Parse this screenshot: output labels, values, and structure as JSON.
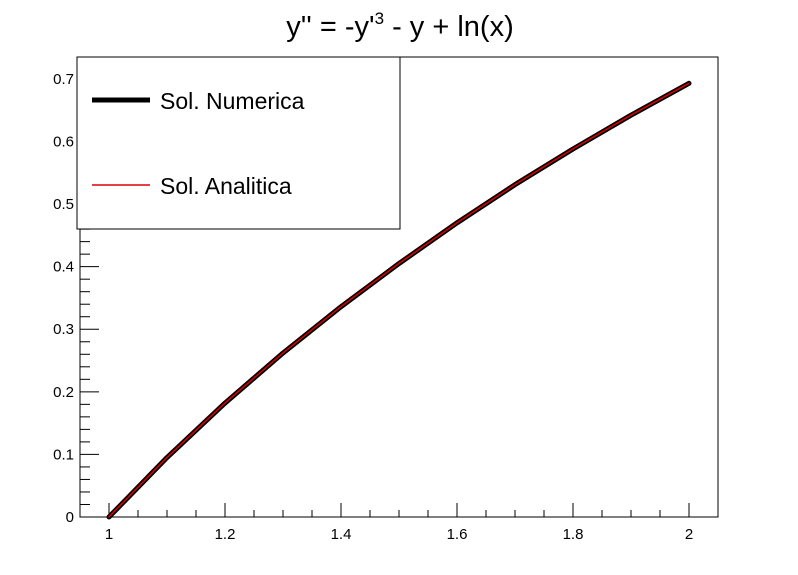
{
  "chart_data": {
    "type": "line",
    "title": {
      "prefix": "y'' = -y'",
      "superscript": "3",
      "suffix": " - y + ln(x)"
    },
    "xlabel": "",
    "ylabel": "",
    "xlim": [
      0.95,
      2.05
    ],
    "ylim": [
      0,
      0.735
    ],
    "x_ticks": [
      1,
      1.2,
      1.4,
      1.6,
      1.8,
      2
    ],
    "x_tick_labels": [
      "1",
      "1.2",
      "1.4",
      "1.6",
      "1.8",
      "2"
    ],
    "y_ticks": [
      0,
      0.1,
      0.2,
      0.3,
      0.4,
      0.5,
      0.6,
      0.7
    ],
    "y_tick_labels": [
      "0",
      "0.1",
      "0.2",
      "0.3",
      "0.4",
      "0.5",
      "0.6",
      "0.7"
    ],
    "grid": false,
    "legend_position": "top-left",
    "series": [
      {
        "name": "Sol. Numerica",
        "color": "#000000",
        "x": [
          1.0,
          1.1,
          1.2,
          1.3,
          1.4,
          1.5,
          1.6,
          1.7,
          1.8,
          1.9,
          2.0
        ],
        "y": [
          0.0,
          0.095,
          0.182,
          0.262,
          0.336,
          0.405,
          0.47,
          0.531,
          0.588,
          0.642,
          0.693
        ]
      },
      {
        "name": "Sol. Analitica",
        "color": "#dd0000",
        "x": [
          1.0,
          1.1,
          1.2,
          1.3,
          1.4,
          1.5,
          1.6,
          1.7,
          1.8,
          1.9,
          2.0
        ],
        "y": [
          0.0,
          0.095,
          0.182,
          0.262,
          0.336,
          0.405,
          0.47,
          0.531,
          0.588,
          0.642,
          0.693
        ]
      }
    ]
  }
}
